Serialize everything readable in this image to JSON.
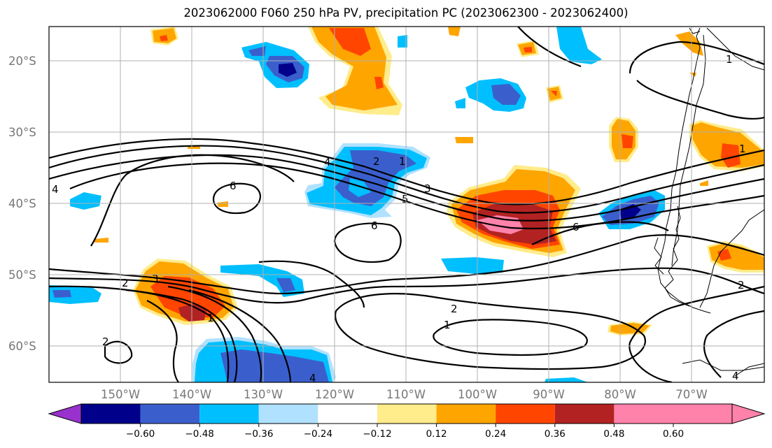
{
  "title": "2023062000 F060 250 hPa PV, precipitation PC (2023062300 - 2023062400)",
  "map": {
    "lat_labels": [
      "20°S",
      "30°S",
      "40°S",
      "50°S",
      "60°S"
    ],
    "lon_labels": [
      "150°W",
      "140°W",
      "130°W",
      "120°W",
      "110°W",
      "100°W",
      "90°W",
      "80°W",
      "70°W"
    ],
    "contour_labels": [
      "1",
      "2",
      "3",
      "4",
      "5",
      "6"
    ]
  },
  "colorbar": {
    "colors": [
      "#9932cc",
      "#00008b",
      "#3a5fcd",
      "#00bfff",
      "#b0e2ff",
      "#ffffff",
      "#ffec8b",
      "#ffa500",
      "#ff4500",
      "#b22222",
      "#ff82ab",
      "#ff82ab"
    ],
    "tick_labels": [
      "−0.60",
      "−0.48",
      "−0.36",
      "−0.24",
      "−0.12",
      "0.12",
      "0.24",
      "0.36",
      "0.48",
      "0.60"
    ]
  }
}
